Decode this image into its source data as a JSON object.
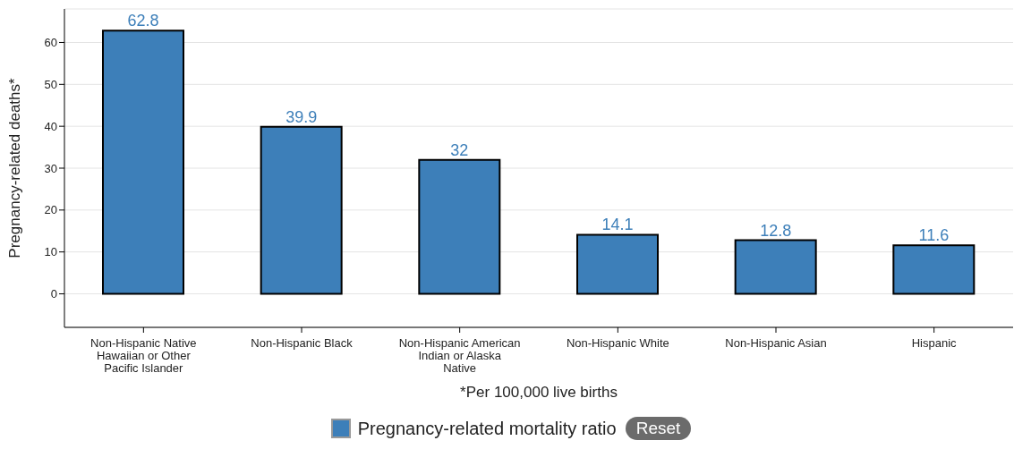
{
  "chart_data": {
    "type": "bar",
    "ylabel": "Pregnancy-related deaths*",
    "xlabel": "*Per 100,000 live births",
    "categories": [
      "Non-Hispanic Native Hawaiian or Other Pacific Islander",
      "Non-Hispanic Black",
      "Non-Hispanic American Indian or Alaska Native",
      "Non-Hispanic White",
      "Non-Hispanic Asian",
      "Hispanic"
    ],
    "series": [
      {
        "name": "Pregnancy-related mortality ratio",
        "color": "#3d7fb9",
        "values": [
          62.8,
          39.9,
          32,
          14.1,
          12.8,
          11.6
        ]
      }
    ],
    "ylim": [
      -8,
      68
    ],
    "yticks": [
      0,
      10,
      20,
      30,
      40,
      50,
      60
    ],
    "grid": "y",
    "data_labels": true,
    "legend": "bottom",
    "annotations": [
      "Reset"
    ]
  }
}
